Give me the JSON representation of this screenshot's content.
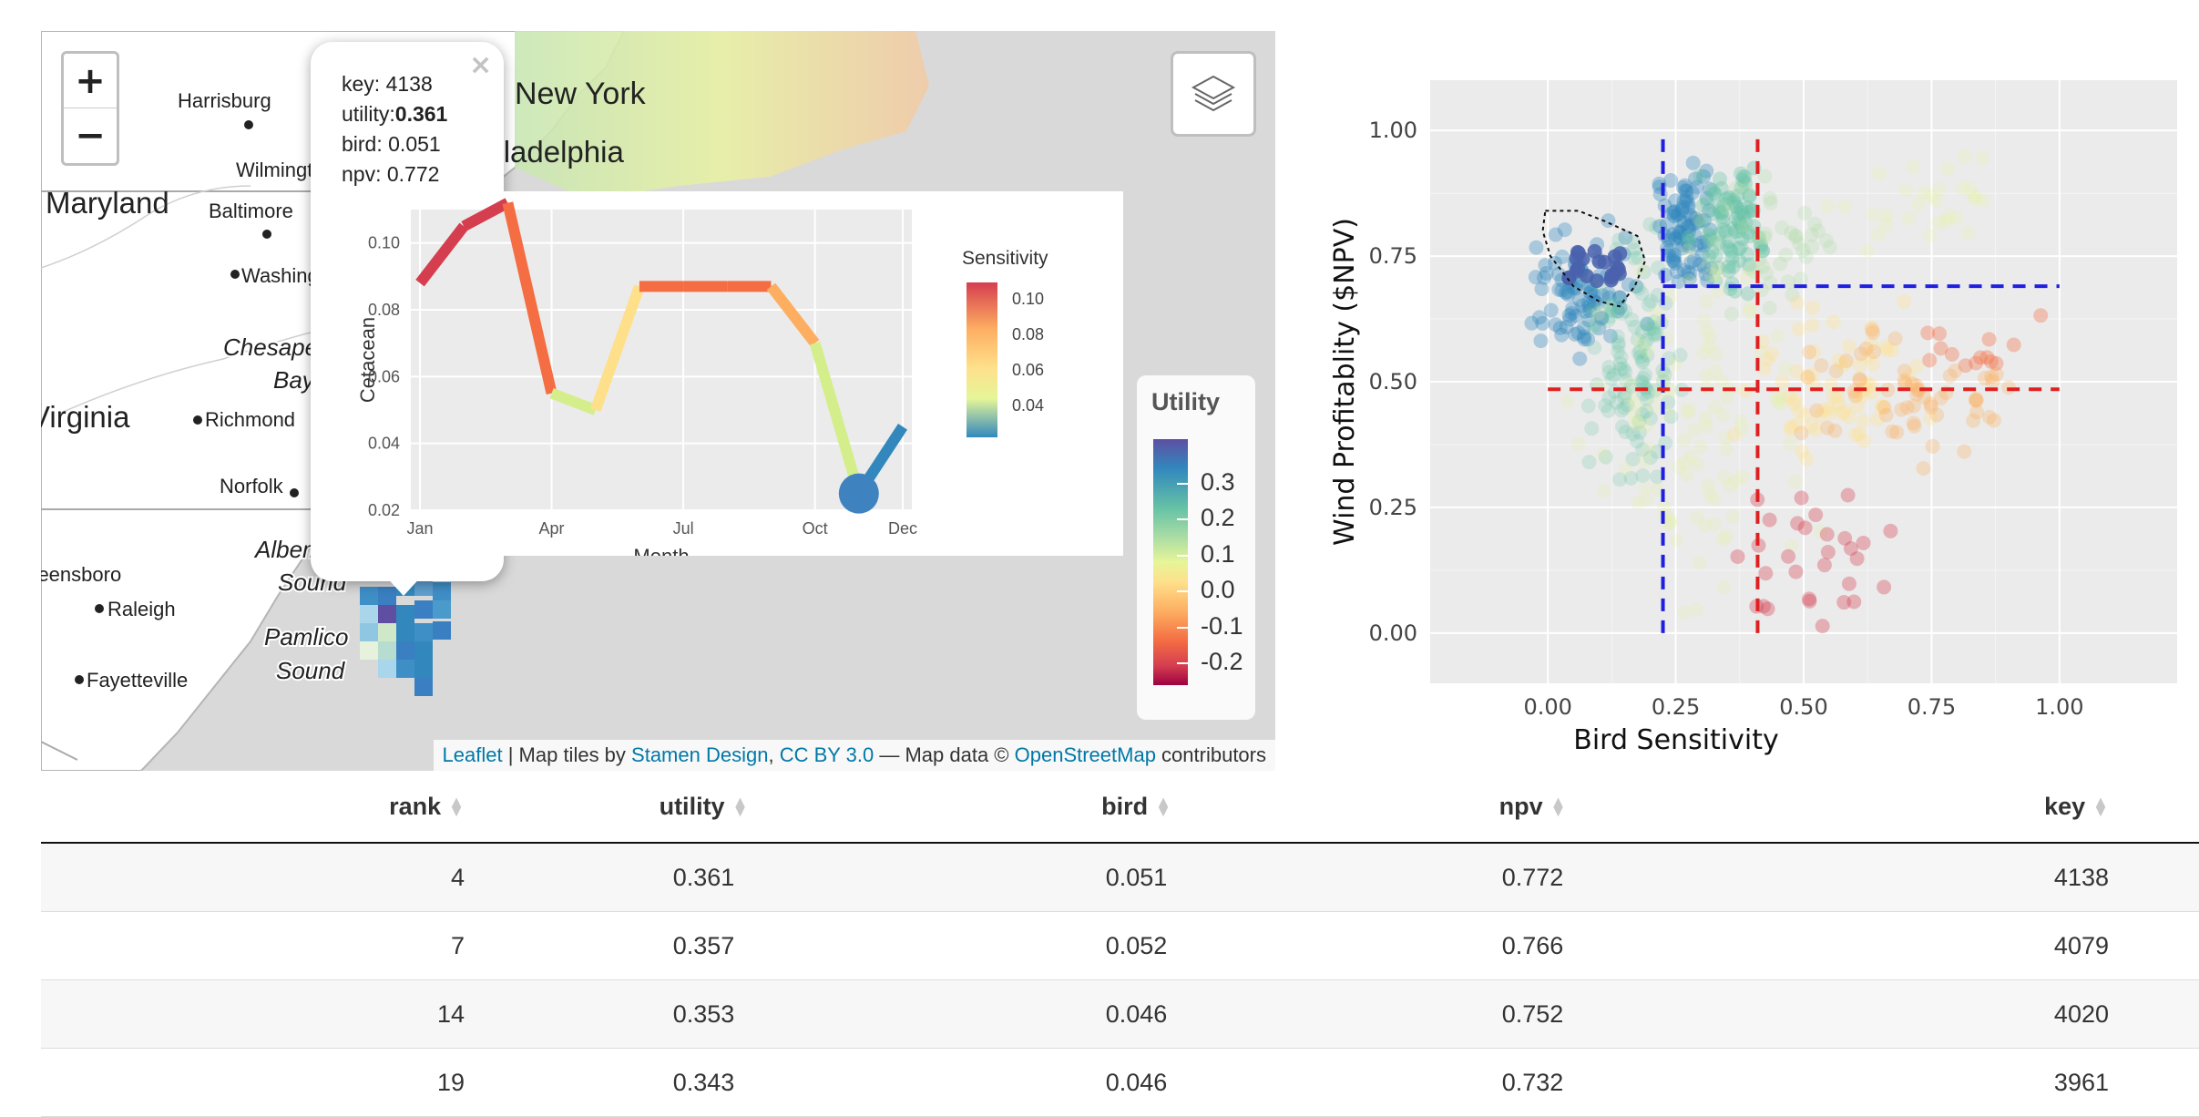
{
  "map": {
    "zoom_in": "+",
    "zoom_out": "−",
    "places": [
      {
        "name": "Harrisburg",
        "kind": "city"
      },
      {
        "name": "New York",
        "kind": "big"
      },
      {
        "name": "Wilmington",
        "kind": "city"
      },
      {
        "name": "Maryland",
        "kind": "state"
      },
      {
        "name": "Baltimore",
        "kind": "city"
      },
      {
        "name": "Washington",
        "kind": "city"
      },
      {
        "name": "Chesapeake",
        "kind": "water"
      },
      {
        "name": "Bay",
        "kind": "water"
      },
      {
        "name": "Virginia",
        "kind": "state"
      },
      {
        "name": "Richmond",
        "kind": "city"
      },
      {
        "name": "Norfolk",
        "kind": "city"
      },
      {
        "name": "Albemarle",
        "kind": "water"
      },
      {
        "name": "Sound",
        "kind": "water"
      },
      {
        "name": "Greensboro",
        "kind": "city"
      },
      {
        "name": "Raleigh",
        "kind": "city"
      },
      {
        "name": "Pamlico",
        "kind": "water"
      },
      {
        "name": "Sound",
        "kind": "water"
      },
      {
        "name": "Fayetteville",
        "kind": "city"
      },
      {
        "name": "Philadelphia",
        "kind": "big"
      }
    ],
    "attribution": {
      "leaflet": "Leaflet",
      "sep1": " | Map tiles by ",
      "stamen": "Stamen Design",
      "comma": ", ",
      "cc": "CC BY 3.0",
      "sep2": " — Map data © ",
      "osm": "OpenStreetMap",
      "tail": " contributors"
    },
    "legend": {
      "title": "Utility",
      "labels": [
        "0.3",
        "0.2",
        "0.1",
        "0.0",
        "-0.1",
        "-0.2"
      ]
    },
    "popup": {
      "close": "×",
      "key_label": "key: ",
      "key_value": "4138",
      "utility_label": "utility:",
      "utility_value": "0.361",
      "bird_label": "bird: ",
      "bird_value": "0.051",
      "npv_label": "npv: ",
      "npv_value": "0.772"
    }
  },
  "chart_data": [
    {
      "type": "line",
      "xlabel": "Month",
      "ylabel": "Cetacean",
      "x_ticks": [
        "Jan",
        "Apr",
        "Jul",
        "Oct",
        "Dec"
      ],
      "y_ticks": [
        "0.10",
        "0.08",
        "0.06",
        "0.04",
        "0.02"
      ],
      "ylim": [
        0.02,
        0.11
      ],
      "x": [
        1,
        2,
        3,
        4,
        5,
        6,
        7,
        8,
        9,
        10,
        11,
        12
      ],
      "values": [
        0.088,
        0.105,
        0.112,
        0.055,
        0.05,
        0.087,
        0.087,
        0.087,
        0.087,
        0.07,
        0.025,
        0.045
      ],
      "legend_title": "Sensitivity",
      "legend_labels": [
        "0.10",
        "0.08",
        "0.06",
        "0.04"
      ]
    },
    {
      "type": "scatter",
      "xlabel": "Bird Sensitivity",
      "ylabel": "Wind Profitablity ($NPV)",
      "x_ticks": [
        "0.00",
        "0.25",
        "0.50",
        "0.75",
        "1.00"
      ],
      "y_ticks": [
        "0.00",
        "0.25",
        "0.50",
        "0.75",
        "1.00"
      ],
      "xlim": [
        -0.23,
        1.23
      ],
      "ylim": [
        -0.1,
        1.1
      ],
      "lines": {
        "blue_vertical_x": 0.225,
        "blue_horizontal_y": 0.69,
        "red_vertical_x": 0.41,
        "red_horizontal_y": 0.485
      },
      "grid": true
    }
  ],
  "table": {
    "headers": [
      "rank",
      "utility",
      "bird",
      "npv",
      "key"
    ],
    "rows": [
      [
        "4",
        "0.361",
        "0.051",
        "0.772",
        "4138"
      ],
      [
        "7",
        "0.357",
        "0.052",
        "0.766",
        "4079"
      ],
      [
        "14",
        "0.353",
        "0.046",
        "0.752",
        "4020"
      ],
      [
        "19",
        "0.343",
        "0.046",
        "0.732",
        "3961"
      ]
    ]
  }
}
